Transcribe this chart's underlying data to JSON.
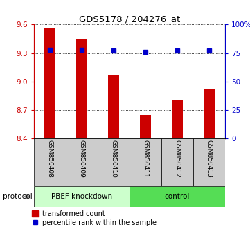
{
  "title": "GDS5178 / 204276_at",
  "categories": [
    "GSM850408",
    "GSM850409",
    "GSM850410",
    "GSM850411",
    "GSM850412",
    "GSM850413"
  ],
  "bar_values": [
    9.57,
    9.45,
    9.07,
    8.65,
    8.8,
    8.92
  ],
  "bar_bottom": 8.4,
  "bar_color": "#cc0000",
  "dot_color": "#0000cc",
  "dot_percentiles": [
    78,
    78,
    77,
    76,
    77,
    77
  ],
  "ylim_left": [
    8.4,
    9.6
  ],
  "yticks_left": [
    8.4,
    8.7,
    9.0,
    9.3,
    9.6
  ],
  "ylim_right": [
    0,
    100
  ],
  "yticks_right": [
    0,
    25,
    50,
    75,
    100
  ],
  "ytick_labels_right": [
    "0",
    "25",
    "50",
    "75",
    "100%"
  ],
  "left_axis_color": "#cc0000",
  "right_axis_color": "#0000cc",
  "group1_label": "PBEF knockdown",
  "group2_label": "control",
  "group_bg_color": "#cccccc",
  "group1_protocol_color": "#ccffcc",
  "group2_protocol_color": "#55dd55",
  "protocol_label": "protocol",
  "legend_bar_label": "transformed count",
  "legend_dot_label": "percentile rank within the sample",
  "bar_width": 0.35,
  "figsize": [
    3.61,
    3.54
  ],
  "dpi": 100
}
